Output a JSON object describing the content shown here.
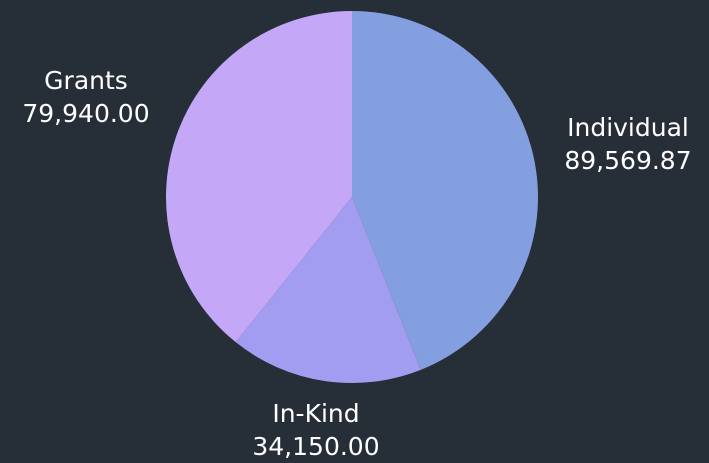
{
  "chart_data": {
    "type": "pie",
    "slices": [
      {
        "label": "Individual",
        "value": 89569.87,
        "value_text": "89,569.87",
        "color": "#849fe0"
      },
      {
        "label": "In-Kind",
        "value": 34150.0,
        "value_text": "34,150.00",
        "color": "#a39df1"
      },
      {
        "label": "Grants",
        "value": 79940.0,
        "value_text": "79,940.00",
        "color": "#c4a8f7"
      }
    ],
    "background": "#262e37",
    "label_color": "#ffffff",
    "start_angle_deg": 0,
    "direction": "clockwise",
    "legend": "none"
  }
}
